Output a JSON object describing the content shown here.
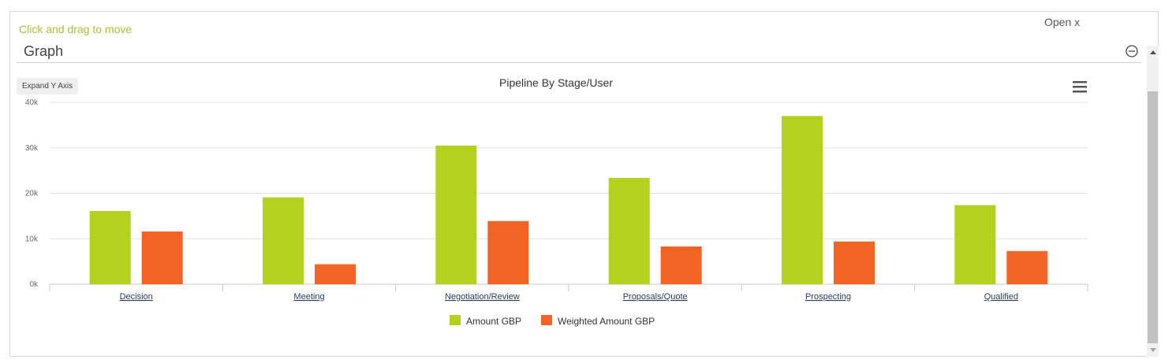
{
  "panel": {
    "drag_hint": "Click and drag to move",
    "open_label": "Open x",
    "section_title": "Graph",
    "collapse_icon": "minus-circle-icon",
    "expand_button": "Expand Y Axis",
    "menu_icon": "hamburger-menu-icon"
  },
  "chart_data": {
    "type": "bar",
    "title": "Pipeline By Stage/User",
    "xlabel": "",
    "ylabel": "",
    "categories": [
      "Decision",
      "Meeting",
      "Negotiation/Review",
      "Proposals/Quote",
      "Prospecting",
      "Qualified"
    ],
    "series": [
      {
        "name": "Amount GBP",
        "color": "#b3d11d",
        "values": [
          16100,
          19100,
          30500,
          23400,
          37000,
          17400
        ]
      },
      {
        "name": "Weighted Amount GBP",
        "color": "#f26324",
        "values": [
          11600,
          4400,
          13900,
          8300,
          9400,
          7300
        ]
      }
    ],
    "ylim": [
      0,
      40000
    ],
    "yticks": [
      "0k",
      "10k",
      "20k",
      "30k",
      "40k"
    ],
    "ytick_values": [
      0,
      10000,
      20000,
      30000,
      40000
    ],
    "grid": true,
    "legend_position": "bottom-center"
  }
}
